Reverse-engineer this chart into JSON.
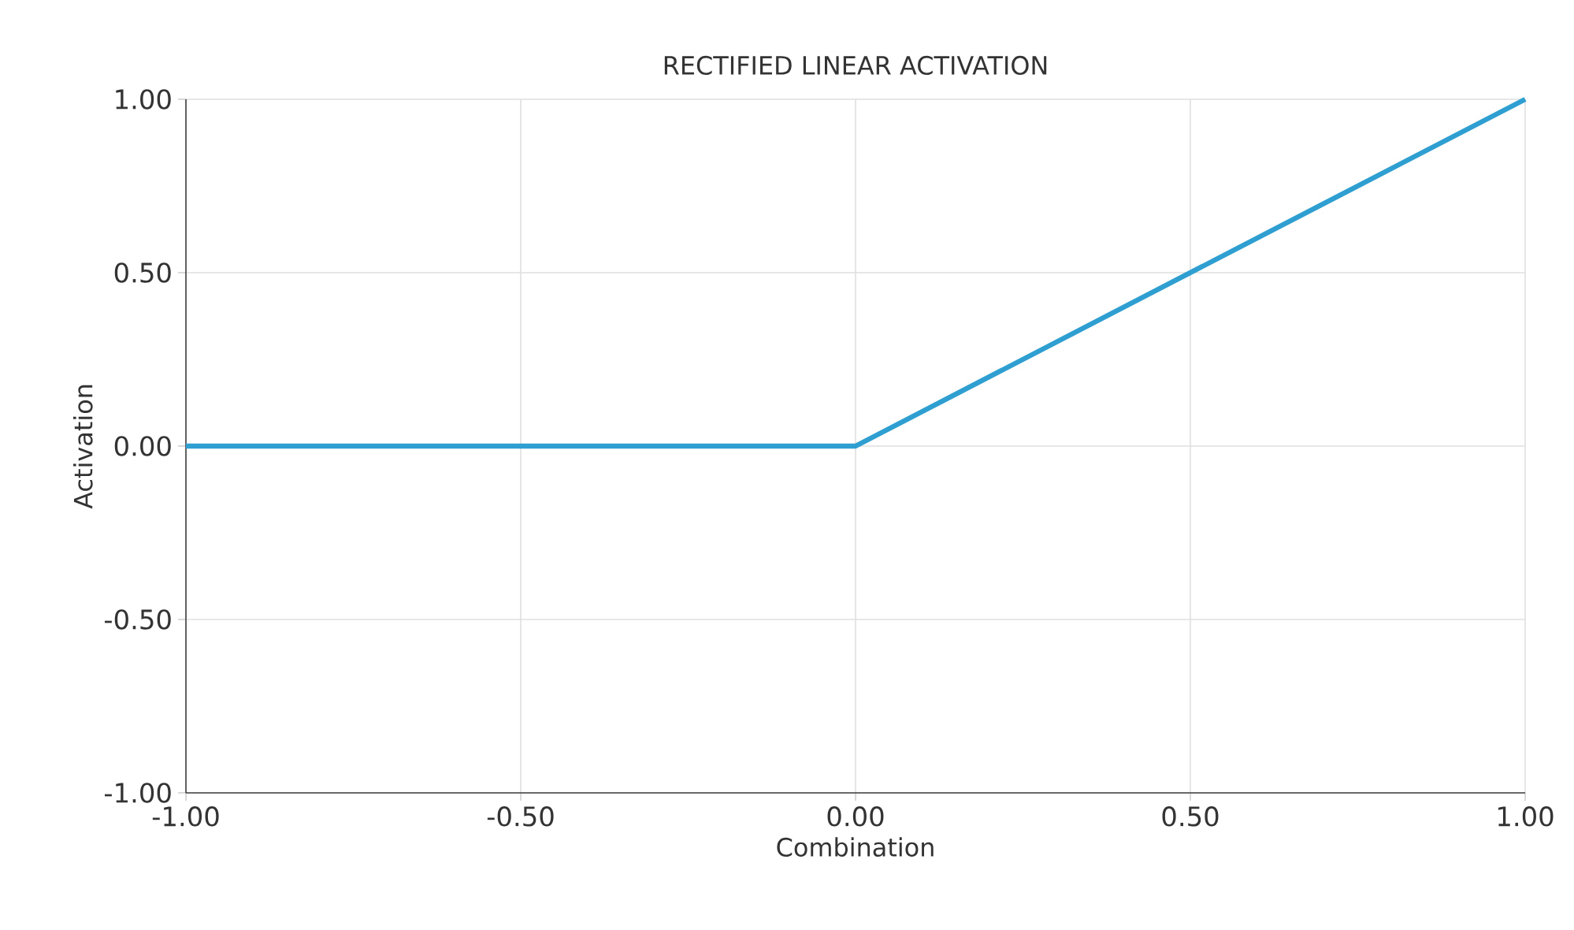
{
  "chart_data": {
    "type": "line",
    "title": "RECTIFIED LINEAR ACTIVATION",
    "xlabel": "Combination",
    "ylabel": "Activation",
    "x": [
      -1,
      0,
      1
    ],
    "values": [
      0,
      0,
      1
    ],
    "color": "#2e9fd0",
    "xlim": [
      -1,
      1
    ],
    "ylim": [
      -1,
      1
    ],
    "xticks": [
      {
        "value": -1,
        "label": "-1.00"
      },
      {
        "value": -0.5,
        "label": "-0.50"
      },
      {
        "value": 0,
        "label": "0.00"
      },
      {
        "value": 0.5,
        "label": "0.50"
      },
      {
        "value": 1,
        "label": "1.00"
      }
    ],
    "yticks": [
      {
        "value": -1,
        "label": "-1.00"
      },
      {
        "value": -0.5,
        "label": "-0.50"
      },
      {
        "value": 0,
        "label": "0.00"
      },
      {
        "value": 0.5,
        "label": "0.50"
      },
      {
        "value": 1,
        "label": "1.00"
      }
    ],
    "grid": true
  }
}
